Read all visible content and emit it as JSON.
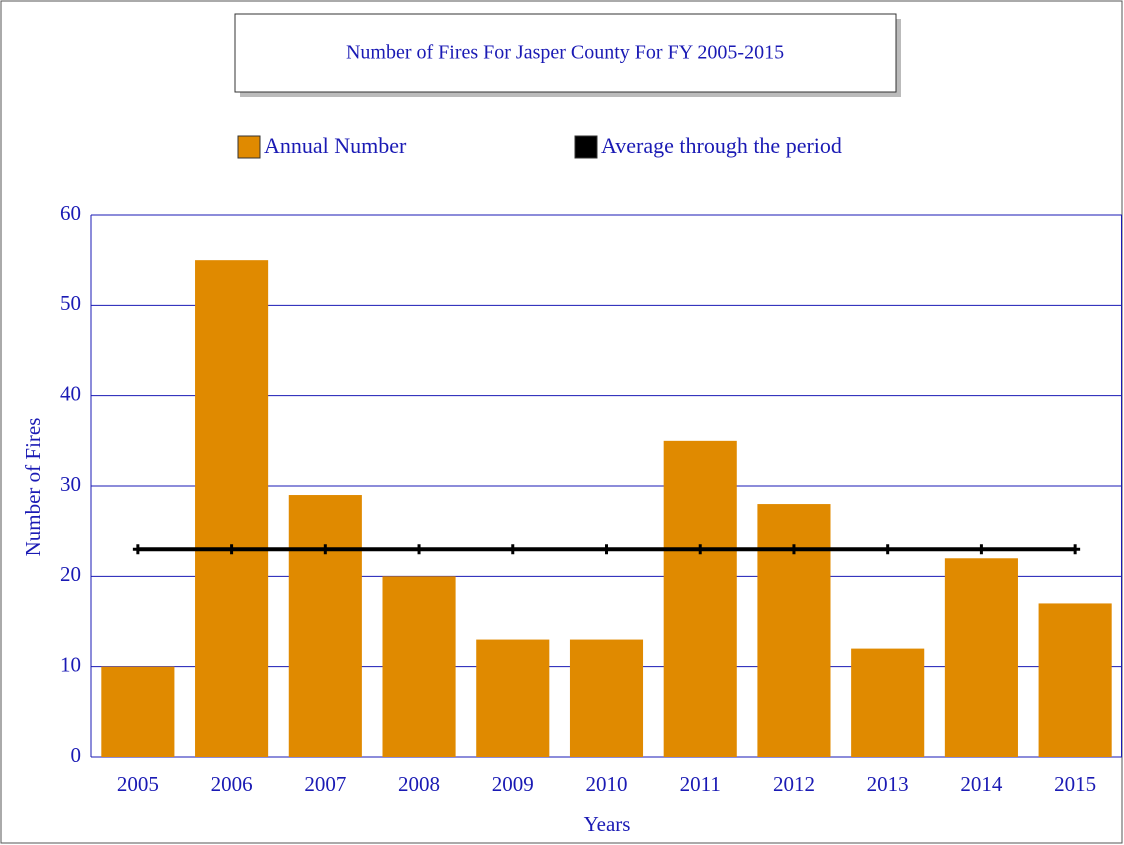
{
  "chart_data": {
    "type": "bar",
    "title": "Number of Fires For Jasper County For FY 2005-2015",
    "x_label": "Years",
    "y_label": "Number of Fires",
    "categories": [
      "2005",
      "2006",
      "2007",
      "2008",
      "2009",
      "2010",
      "2011",
      "2012",
      "2013",
      "2014",
      "2015"
    ],
    "series": [
      {
        "name": "Annual Number",
        "color": "#e08a00",
        "values": [
          10,
          55,
          29,
          20,
          13,
          13,
          35,
          28,
          12,
          22,
          17
        ]
      },
      {
        "name": "Average through the period",
        "color": "#000000",
        "type": "line",
        "values": [
          23,
          23,
          23,
          23,
          23,
          23,
          23,
          23,
          23,
          23,
          23
        ]
      }
    ],
    "ylim": [
      0,
      60
    ],
    "yticks": [
      0,
      10,
      20,
      30,
      40,
      50,
      60
    ],
    "grid": true
  }
}
